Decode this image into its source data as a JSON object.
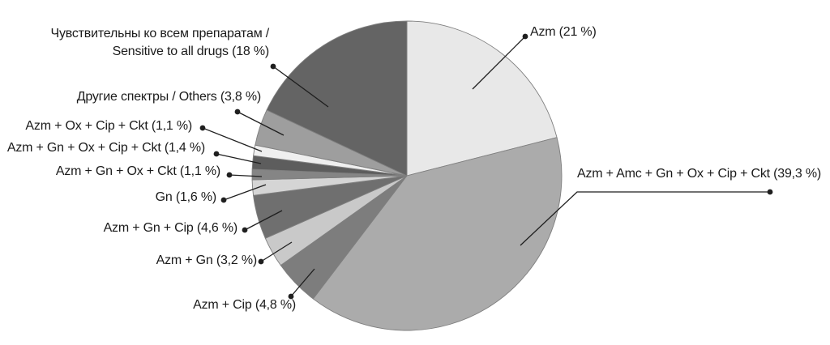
{
  "figure": {
    "background": "#ffffff",
    "text_color": "#1b1b1b",
    "stroke_color": "#7f7f7f",
    "leader_color": "#1f1f1f"
  },
  "chart_data": {
    "type": "pie",
    "title": "",
    "start_angle_deg_from_top": 0,
    "direction": "clockwise",
    "legend_position": "none",
    "labels_style": "outside with leader lines and dots",
    "units": "%",
    "decimal_separator": ",",
    "slices": [
      {
        "name": "Azm",
        "value": 21,
        "display": "Azm (21 %)",
        "color": "#e8e8e8"
      },
      {
        "name": "Azm + Amc + Gn + Ox + Cip + Ckt",
        "value": 39.3,
        "display": "Azm + Amc + Gn + Ox + Cip + Ckt (39,3 %)",
        "color": "#ababab"
      },
      {
        "name": "Azm + Cip",
        "value": 4.8,
        "display": "Azm + Cip (4,8 %)",
        "color": "#7d7d7d"
      },
      {
        "name": "Azm + Gn",
        "value": 3.2,
        "display": "Azm + Gn (3,2 %)",
        "color": "#c9c9c9"
      },
      {
        "name": "Azm + Gn + Cip",
        "value": 4.6,
        "display": "Azm + Gn + Cip (4,6 %)",
        "color": "#6f6f6f"
      },
      {
        "name": "Gn",
        "value": 1.6,
        "display": "Gn (1,6 %)",
        "color": "#d5d5d5"
      },
      {
        "name": "Azm + Gn + Ox + Ckt",
        "value": 1.1,
        "display": "Azm + Gn + Ox + Ckt (1,1 %)",
        "color": "#858585"
      },
      {
        "name": "Azm + Gn + Ox + Cip + Ckt",
        "value": 1.4,
        "display": "Azm + Gn + Ox + Cip + Ckt (1,4 %)",
        "color": "#5d5d5d"
      },
      {
        "name": "Azm + Ox + Cip + Ckt",
        "value": 1.1,
        "display": "Azm + Ox + Cip + Ckt (1,1 %)",
        "color": "#efefef"
      },
      {
        "name": "Другие спектры / Others",
        "value": 3.8,
        "display": "Другие спектры / Others (3,8 %)",
        "color": "#9e9e9e"
      },
      {
        "name": "Чувствительны ко всем препаратам / Sensitive to all drugs",
        "value": 18,
        "display_line1": "Чувствительны ко всем препаратам /",
        "display_line2": "Sensitive to all drugs (18 %)",
        "color": "#646464"
      }
    ]
  }
}
